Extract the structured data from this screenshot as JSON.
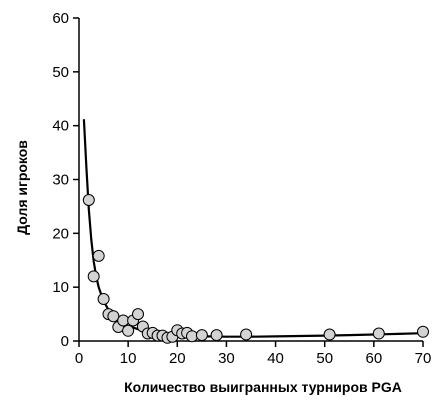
{
  "chart_data": {
    "type": "scatter",
    "xlabel": "Количество выигранных турниров PGA",
    "ylabel": "Доля игроков",
    "xlim": [
      0,
      70
    ],
    "ylim": [
      0,
      60
    ],
    "x_ticks": [
      0,
      10,
      20,
      30,
      40,
      50,
      60,
      70
    ],
    "y_ticks": [
      0,
      10,
      20,
      30,
      40,
      50,
      60
    ],
    "grid": false,
    "legend": "none",
    "series": [
      {
        "kind": "points",
        "x": [
          2,
          3,
          4,
          5,
          6,
          7,
          8,
          9,
          10,
          11,
          12,
          13,
          14,
          15,
          16,
          17,
          18,
          19,
          20,
          21,
          22,
          23,
          25,
          28,
          34,
          51,
          61,
          70
        ],
        "y": [
          26.2,
          12.0,
          15.8,
          7.8,
          5.0,
          4.6,
          2.6,
          3.8,
          1.9,
          3.8,
          5.0,
          2.7,
          1.4,
          1.5,
          1.0,
          1.0,
          0.6,
          0.8,
          2.0,
          1.4,
          1.5,
          0.9,
          1.1,
          1.1,
          1.2,
          1.2,
          1.4,
          1.7
        ]
      },
      {
        "kind": "fit-line",
        "x": [
          1,
          1.5,
          2,
          2.5,
          3,
          3.5,
          4,
          5,
          6,
          7,
          8,
          10,
          12,
          15,
          18,
          22,
          26,
          30,
          35,
          40,
          45,
          50,
          55,
          60,
          65,
          70
        ],
        "y": [
          41.2,
          32.2,
          24.5,
          18.8,
          14.8,
          12.0,
          10.0,
          7.4,
          5.8,
          4.7,
          3.9,
          2.8,
          2.2,
          1.6,
          1.25,
          0.98,
          0.85,
          0.8,
          0.8,
          0.85,
          0.92,
          1.0,
          1.1,
          1.2,
          1.32,
          1.45
        ]
      }
    ],
    "colors": {
      "marker_fill": "#d3d3d3",
      "marker_stroke": "#000000",
      "line": "#000000",
      "axis": "#000000"
    }
  }
}
